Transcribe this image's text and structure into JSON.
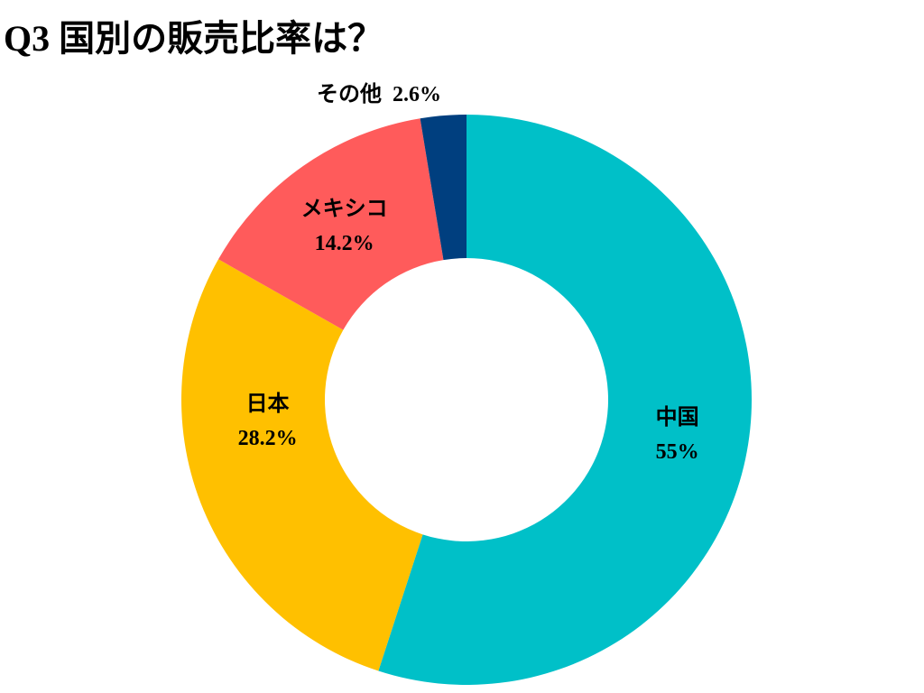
{
  "chart_data": {
    "type": "donut",
    "title": "Q3 国別の販売比率は？",
    "categories": [
      "中国",
      "日本",
      "メキシコ",
      "その他"
    ],
    "values": [
      55,
      28.2,
      14.2,
      2.6
    ],
    "value_labels": [
      "55%",
      "28.2%",
      "14.2%",
      "2.6%"
    ],
    "colors": [
      "#00c0c8",
      "#ffc000",
      "#ff5b5b",
      "#003f7f"
    ]
  }
}
